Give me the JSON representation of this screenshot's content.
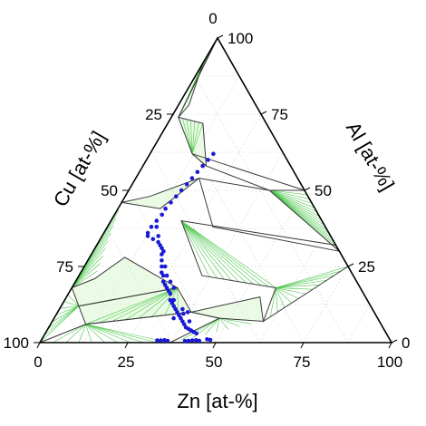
{
  "chart_data": {
    "type": "scatter",
    "subtype": "ternary-phase-diagram",
    "title": "",
    "axes": {
      "bottom": {
        "label": "Zn  [at-%]",
        "ticks": [
          "0",
          "25",
          "50",
          "75",
          "100"
        ],
        "range": [
          0,
          100
        ]
      },
      "left": {
        "label": "Cu  [at-%]",
        "ticks": [
          "25",
          "50",
          "75",
          "100"
        ],
        "range": [
          0,
          100
        ]
      },
      "right": {
        "label": "Al [at-%]",
        "ticks": [
          "100",
          "75",
          "50",
          "25",
          "0"
        ],
        "range": [
          0,
          100
        ]
      },
      "top_vertex_label": "0"
    },
    "grid": true,
    "colors": {
      "frame": "#000000",
      "phase_boundary": "#3a3a3a",
      "tie_line": "#4cc84c",
      "two_phase_fill": "#d8f5d0",
      "data_points": "#1a1ad6",
      "grid": "#c8c8c8"
    },
    "series": [
      {
        "marker": "circle",
        "color": "#1a1ad6",
        "points": [
          {
            "zn": 18,
            "al": 62
          },
          {
            "zn": 17.5,
            "al": 60
          },
          {
            "zn": 17,
            "al": 58
          },
          {
            "zn": 16.5,
            "al": 56
          },
          {
            "zn": 16,
            "al": 54
          },
          {
            "zn": 15.5,
            "al": 52
          },
          {
            "zn": 15,
            "al": 50
          },
          {
            "zn": 14.5,
            "al": 48
          },
          {
            "zn": 14,
            "al": 46
          },
          {
            "zn": 13.5,
            "al": 44
          },
          {
            "zn": 13.5,
            "al": 42
          },
          {
            "zn": 13,
            "al": 40
          },
          {
            "zn": 12.5,
            "al": 38
          },
          {
            "zn": 12.5,
            "al": 36
          },
          {
            "zn": 13,
            "al": 35
          },
          {
            "zn": 15,
            "al": 34
          },
          {
            "zn": 17,
            "al": 33
          },
          {
            "zn": 19,
            "al": 31
          },
          {
            "zn": 20,
            "al": 29
          },
          {
            "zn": 21,
            "al": 27
          },
          {
            "zn": 22,
            "al": 25
          },
          {
            "zn": 23,
            "al": 23
          },
          {
            "zn": 24,
            "al": 22
          },
          {
            "zn": 25,
            "al": 20
          },
          {
            "zn": 26,
            "al": 19
          },
          {
            "zn": 27,
            "al": 18
          },
          {
            "zn": 28,
            "al": 17
          },
          {
            "zn": 29,
            "al": 16
          },
          {
            "zn": 30,
            "al": 14
          },
          {
            "zn": 31,
            "al": 13
          },
          {
            "zn": 32,
            "al": 12
          },
          {
            "zn": 33,
            "al": 11
          },
          {
            "zn": 34,
            "al": 10
          },
          {
            "zn": 35,
            "al": 9
          },
          {
            "zn": 36,
            "al": 8
          },
          {
            "zn": 37,
            "al": 7
          },
          {
            "zn": 38,
            "al": 6
          },
          {
            "zn": 39,
            "al": 5
          },
          {
            "zn": 40,
            "al": 4.5
          },
          {
            "zn": 41,
            "al": 4
          },
          {
            "zn": 42,
            "al": 3.5
          },
          {
            "zn": 43,
            "al": 3
          },
          {
            "zn": 36,
            "al": 9.5
          },
          {
            "zn": 35,
            "al": 11
          },
          {
            "zn": 37,
            "al": 10
          },
          {
            "zn": 34,
            "al": 8
          },
          {
            "zn": 39,
            "al": 7
          },
          {
            "zn": 31,
            "al": 14
          },
          {
            "zn": 29,
            "al": 18
          },
          {
            "zn": 27,
            "al": 20
          },
          {
            "zn": 25,
            "al": 22
          },
          {
            "zn": 23,
            "al": 25
          },
          {
            "zn": 20,
            "al": 30
          },
          {
            "zn": 18,
            "al": 32
          },
          {
            "zn": 16,
            "al": 35
          },
          {
            "zn": 14,
            "al": 38
          },
          {
            "zn": 33,
            "al": 0.7
          },
          {
            "zn": 34,
            "al": 0.7
          },
          {
            "zn": 35,
            "al": 0.8
          },
          {
            "zn": 36,
            "al": 0.6
          },
          {
            "zn": 41,
            "al": 0.5
          },
          {
            "zn": 42,
            "al": 0.6
          },
          {
            "zn": 43,
            "al": 0.7
          },
          {
            "zn": 44,
            "al": 0.8
          },
          {
            "zn": 45,
            "al": 0.6
          },
          {
            "zn": 48,
            "al": 0.9
          },
          {
            "zn": 47,
            "al": 1.1
          }
        ]
      }
    ],
    "phase_boundaries": [
      {
        "type": "polygon",
        "points": [
          [
            0,
            100
          ],
          [
            0,
            92
          ],
          [
            3,
            78
          ],
          [
            2,
            74
          ],
          [
            0,
            100
          ]
        ]
      },
      {
        "type": "polygon",
        "points": [
          [
            2,
            74
          ],
          [
            10,
            72
          ],
          [
            18,
            58
          ],
          [
            12,
            62
          ],
          [
            2,
            74
          ]
        ]
      },
      {
        "type": "polygon",
        "points": [
          [
            0,
            46
          ],
          [
            7,
            48
          ],
          [
            18,
            54
          ],
          [
            12,
            44
          ],
          [
            0,
            46
          ]
        ]
      },
      {
        "type": "polygon",
        "points": [
          [
            0,
            18
          ],
          [
            5,
            21
          ],
          [
            10,
            28
          ],
          [
            22,
            22
          ],
          [
            30,
            18
          ],
          [
            5,
            12
          ],
          [
            0,
            18
          ]
        ]
      },
      {
        "type": "polygon",
        "points": [
          [
            5,
            12
          ],
          [
            30,
            18
          ],
          [
            38,
            10
          ],
          [
            10,
            6
          ],
          [
            5,
            12
          ]
        ]
      },
      {
        "type": "polygon",
        "points": [
          [
            38,
            10
          ],
          [
            47,
            8
          ],
          [
            60,
            7
          ],
          [
            55,
            15
          ],
          [
            38,
            10
          ]
        ]
      },
      {
        "type": "polygon",
        "points": [
          [
            10,
            6
          ],
          [
            38,
            10
          ],
          [
            47,
            8
          ],
          [
            37,
            0
          ],
          [
            0,
            0
          ],
          [
            10,
            6
          ]
        ]
      },
      {
        "type": "polygon",
        "points": [
          [
            20,
            40
          ],
          [
            35,
            22
          ],
          [
            58,
            18
          ],
          [
            60,
            7
          ],
          [
            75,
            25
          ],
          [
            68,
            32
          ],
          [
            20,
            40
          ]
        ]
      },
      {
        "type": "polygon",
        "points": [
          [
            18,
            54
          ],
          [
            40,
            50
          ],
          [
            70,
            30
          ],
          [
            30,
            38
          ],
          [
            18,
            54
          ]
        ]
      },
      {
        "type": "polygon",
        "points": [
          [
            12,
            62
          ],
          [
            18,
            58
          ],
          [
            40,
            50
          ],
          [
            50,
            50
          ],
          [
            12,
            62
          ]
        ]
      }
    ]
  }
}
